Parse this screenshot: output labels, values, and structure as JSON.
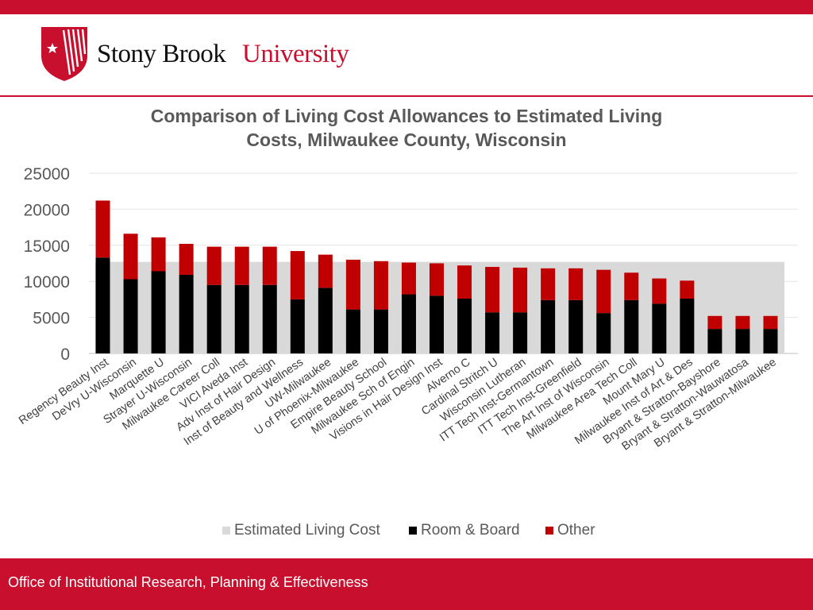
{
  "header": {
    "logo_text_primary": "Stony Brook",
    "logo_text_secondary": "University",
    "brand_color": "#c8102e"
  },
  "footer": {
    "text": "Office of Institutional Research, Planning & Effectiveness"
  },
  "chart_data": {
    "type": "bar",
    "title_lines": [
      "Comparison of Living Cost Allowances to Estimated Living",
      "Costs, Milwaukee County, Wisconsin"
    ],
    "categories": [
      "Regency Beauty Inst",
      "DeVry U-Wisconsin",
      "Marquette U",
      "Strayer U-Wisconsin",
      "Milwaukee Career Coll",
      "VICI Aveda Inst",
      "Adv Inst of Hair Design",
      "Inst of Beauty and Wellness",
      "UW-Milwaukee",
      "U of Phoenix-Milwaukee",
      "Empire Beauty School",
      "Milwaukee Sch of Engin",
      "Visions in Hair Design Inst",
      "Alverno C",
      "Cardinal Stritch U",
      "Wisconsin Lutheran",
      "ITT Tech Inst-Germantown",
      "ITT Tech Inst-Greenfield",
      "The Art Inst of Wisconsin",
      "Milwaukee Area Tech Coll",
      "Mount Mary U",
      "Milwaukee Inst of Art & Des",
      "Bryant & Stratton-Bayshore",
      "Bryant & Stratton-Wauwatosa",
      "Bryant & Stratton-Milwaukee"
    ],
    "estimated_living_cost": 12700,
    "series": [
      {
        "name": "Room & Board",
        "color": "#000000",
        "values": [
          13300,
          10300,
          11400,
          10900,
          9500,
          9500,
          9500,
          7500,
          9100,
          6100,
          6100,
          8200,
          8000,
          7600,
          5700,
          5700,
          7400,
          7400,
          5600,
          7400,
          6900,
          7600,
          3400,
          3400,
          3400
        ]
      },
      {
        "name": "Other",
        "color": "#c00000",
        "values": [
          7900,
          6300,
          4700,
          4300,
          5300,
          5300,
          5300,
          6700,
          4600,
          6900,
          6700,
          4400,
          4500,
          4600,
          6300,
          6200,
          4400,
          4400,
          6000,
          3800,
          3500,
          2500,
          1800,
          1800,
          1800
        ]
      }
    ],
    "legend": [
      {
        "name": "Estimated Living Cost",
        "color": "#d9d9d9"
      },
      {
        "name": "Room & Board",
        "color": "#000000"
      },
      {
        "name": "Other",
        "color": "#c00000"
      }
    ],
    "y_ticks": [
      "25000",
      "20000",
      "15000",
      "10000",
      "5000",
      "0"
    ],
    "ylim": [
      0,
      25000
    ],
    "grid": true,
    "legend_position": "bottom"
  }
}
